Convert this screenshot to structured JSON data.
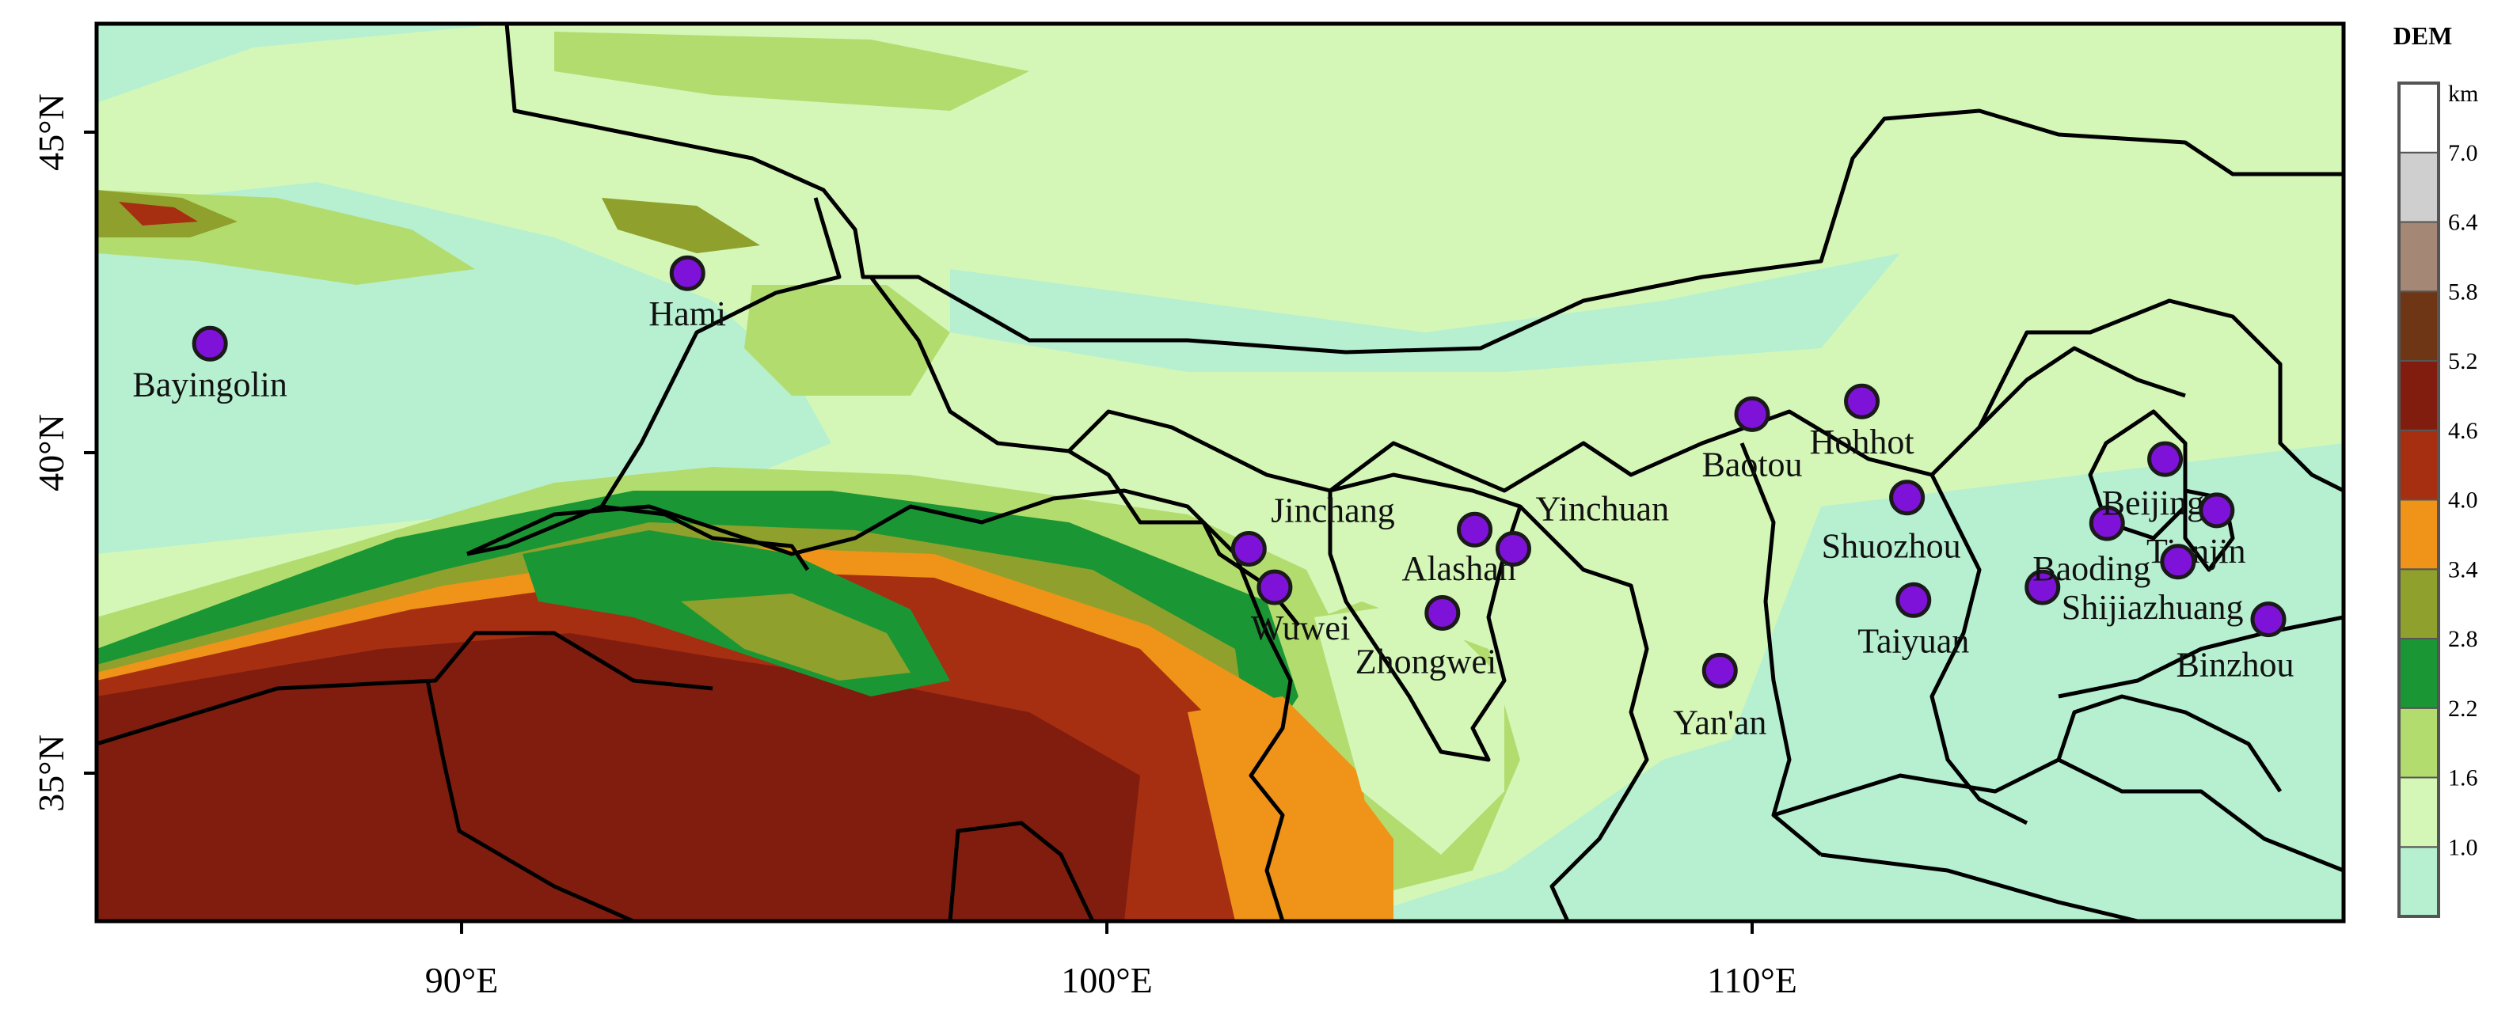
{
  "legend": {
    "title": "DEM",
    "unit": "km",
    "classes": [
      {
        "color": "#b6f0d0"
      },
      {
        "color": "#d4f7b8"
      },
      {
        "color": "#b3dc6f"
      },
      {
        "color": "#1b9634"
      },
      {
        "color": "#8fa12c"
      },
      {
        "color": "#ef9419"
      },
      {
        "color": "#a62f12"
      },
      {
        "color": "#811d0f"
      },
      {
        "color": "#6e3615"
      },
      {
        "color": "#a48774"
      },
      {
        "color": "#cfcfcf"
      },
      {
        "color": "#ffffff"
      }
    ],
    "ticks": [
      "1.0",
      "1.6",
      "2.2",
      "2.8",
      "3.4",
      "4.0",
      "4.6",
      "5.2",
      "5.8",
      "6.4",
      "7.0"
    ]
  },
  "axes": {
    "lon_ticks": [
      "90°E",
      "100°E",
      "110°E"
    ],
    "lat_ticks": [
      "45°N",
      "40°N",
      "35°N"
    ]
  },
  "cities": [
    {
      "name": "Bayingolin",
      "lon": 86.1,
      "lat": 41.7
    },
    {
      "name": "Hami",
      "lon": 93.5,
      "lat": 42.8
    },
    {
      "name": "Jinchang",
      "lon": 102.2,
      "lat": 38.5
    },
    {
      "name": "Wuwei",
      "lon": 102.6,
      "lat": 37.9
    },
    {
      "name": "Alashan",
      "lon": 105.7,
      "lat": 38.8
    },
    {
      "name": "Yinchuan",
      "lon": 106.3,
      "lat": 38.5
    },
    {
      "name": "Zhongwei",
      "lon": 105.2,
      "lat": 37.5
    },
    {
      "name": "Yan'an",
      "lon": 109.5,
      "lat": 36.6
    },
    {
      "name": "Baotou",
      "lon": 110.0,
      "lat": 40.6
    },
    {
      "name": "Hohhot",
      "lon": 111.7,
      "lat": 40.8
    },
    {
      "name": "Shuozhou",
      "lon": 112.4,
      "lat": 39.3
    },
    {
      "name": "Taiyuan",
      "lon": 112.5,
      "lat": 37.7
    },
    {
      "name": "Shijiazhuang",
      "lon": 114.5,
      "lat": 37.9
    },
    {
      "name": "Baoding",
      "lon": 115.5,
      "lat": 38.9
    },
    {
      "name": "Beijing",
      "lon": 116.4,
      "lat": 39.9
    },
    {
      "name": "Tianjin",
      "lon": 117.2,
      "lat": 39.1
    },
    {
      "name": "Binzhou",
      "lon": 118.0,
      "lat": 37.4
    },
    {
      "name": "",
      "lon": 116.6,
      "lat": 38.3
    }
  ],
  "colors": {
    "marker_fill": "#7f12d9",
    "marker_stroke": "#1a1a1a",
    "border": "#000000"
  }
}
